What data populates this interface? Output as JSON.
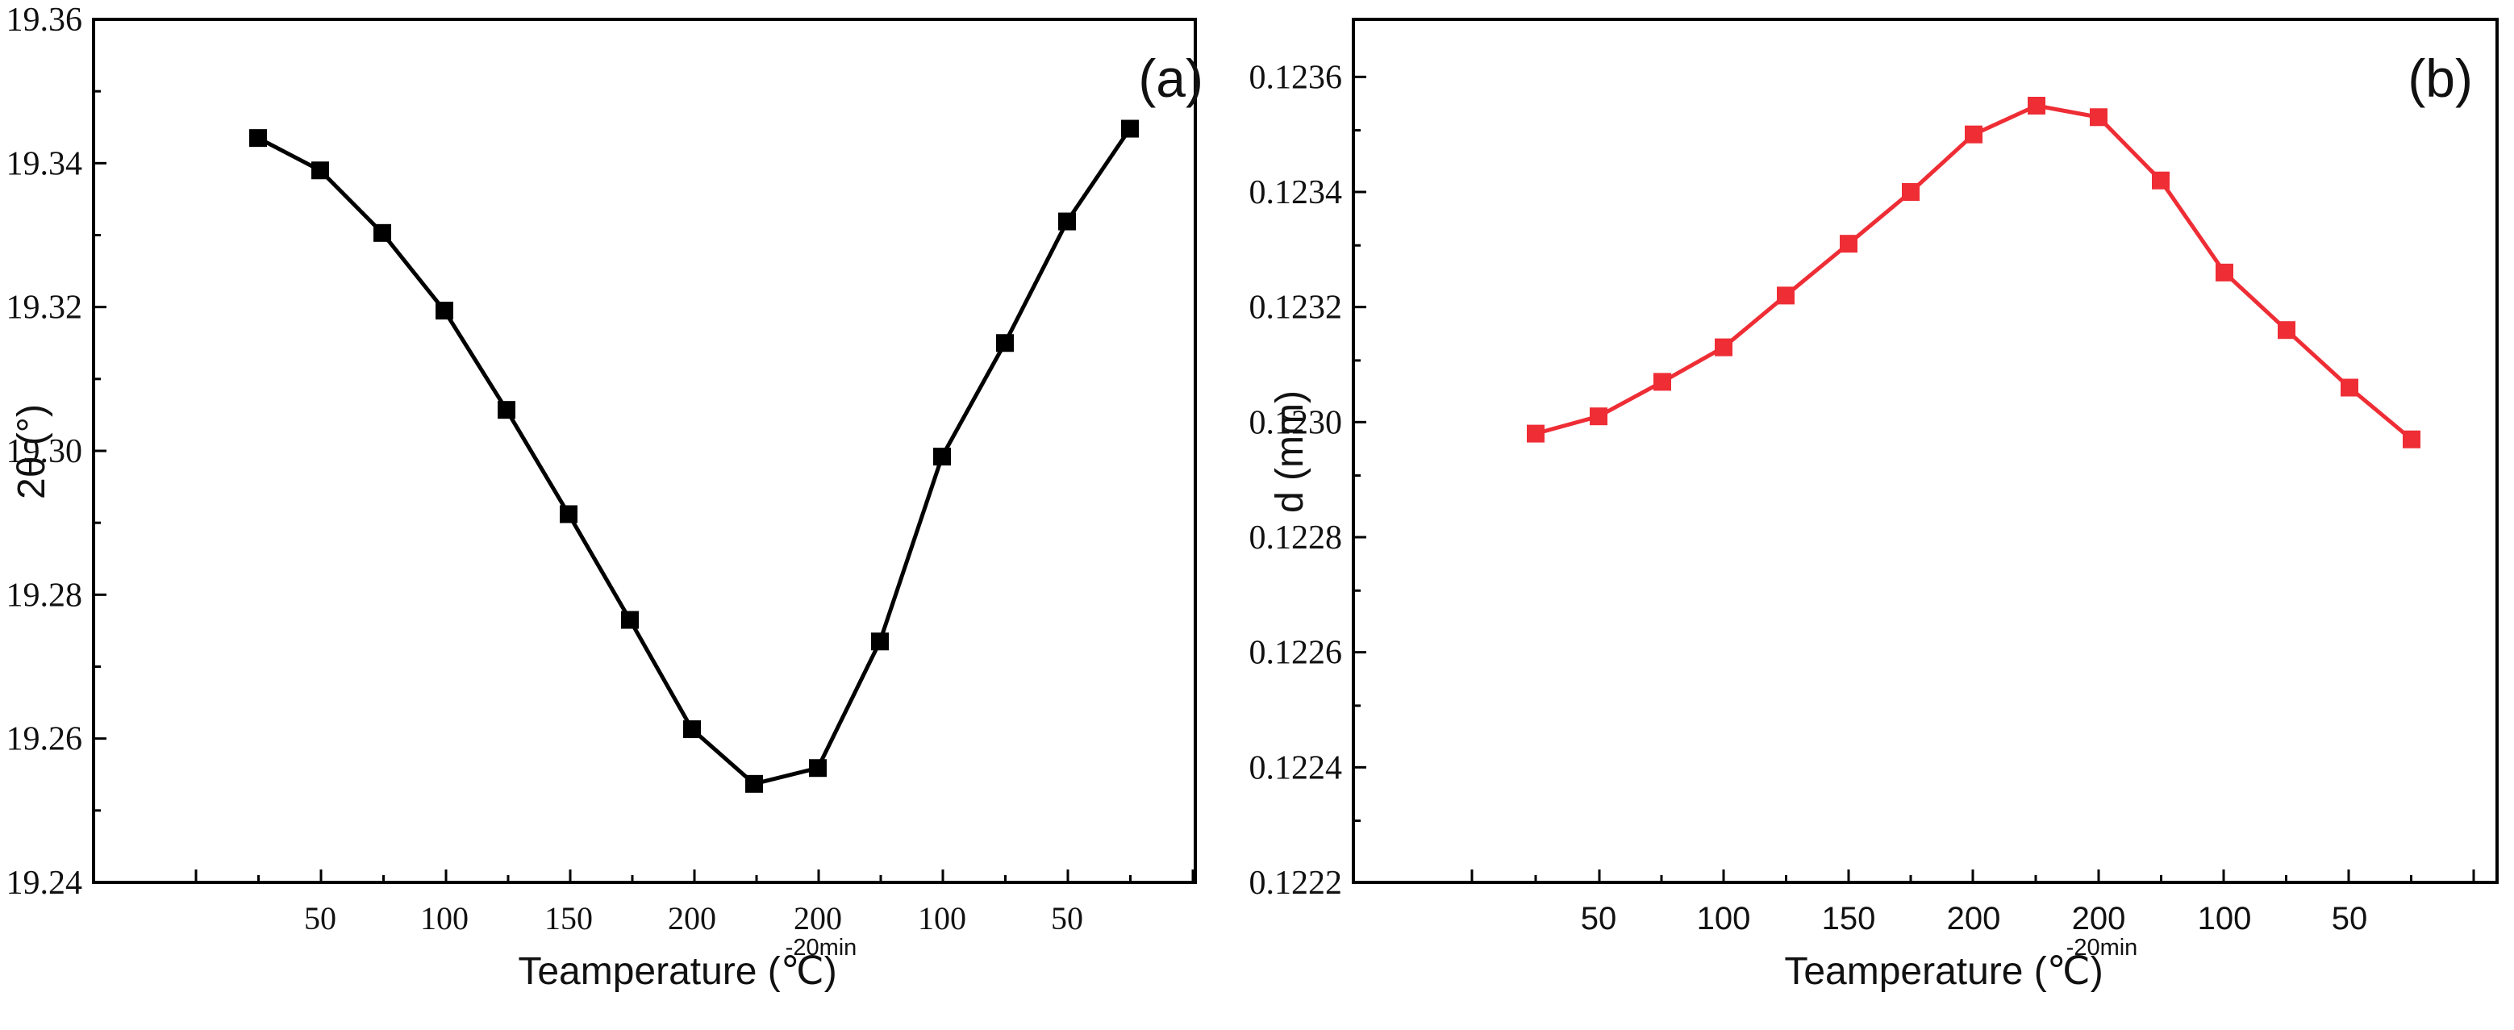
{
  "chart_data": [
    {
      "type": "line",
      "panel_label": "(a)",
      "xlabel": "Teamperature (℃)",
      "ylabel": "2θ (°)",
      "ylim": [
        19.24,
        19.36
      ],
      "y_ticks": [
        "19.24",
        "19.26",
        "19.28",
        "19.30",
        "19.32",
        "19.34",
        "19.36"
      ],
      "x_tick_labels": [
        "50",
        "100",
        "150",
        "200",
        "200",
        "100",
        "50"
      ],
      "x_tick_sublabel": "-20min",
      "grid": false,
      "marker": "square",
      "color": "#000000",
      "series": [
        {
          "name": "2θ",
          "values": [
            19.3435,
            19.339,
            19.3303,
            19.3195,
            19.3057,
            19.2912,
            19.2765,
            19.2613,
            19.2537,
            19.2559,
            19.2735,
            19.2992,
            19.315,
            19.3319,
            19.3448
          ]
        }
      ]
    },
    {
      "type": "line",
      "panel_label": "(b)",
      "xlabel": "Teamperature (℃)",
      "ylabel": "d (mm)",
      "ylim": [
        0.1222,
        0.1237
      ],
      "y_ticks": [
        "0.1222",
        "0.1224",
        "0.1226",
        "0.1228",
        "0.1230",
        "0.1232",
        "0.1234",
        "0.1236"
      ],
      "x_tick_labels": [
        "50",
        "100",
        "150",
        "200",
        "200",
        "100",
        "50"
      ],
      "x_tick_sublabel": "-20min",
      "grid": false,
      "marker": "square",
      "color": "#ee2d35",
      "series": [
        {
          "name": "d",
          "values": [
            0.12298,
            0.12301,
            0.12307,
            0.12313,
            0.12322,
            0.12331,
            0.1234,
            0.1235,
            0.12355,
            0.12353,
            0.12342,
            0.12326,
            0.12316,
            0.12306,
            0.12297
          ]
        }
      ]
    }
  ]
}
